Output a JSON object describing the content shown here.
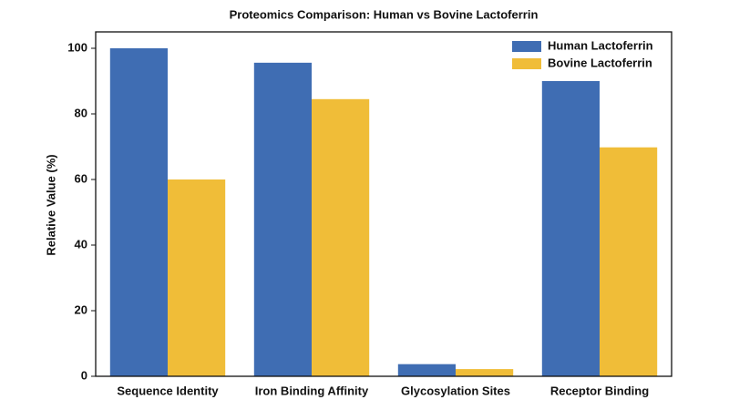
{
  "chart_data": {
    "type": "bar",
    "title": "Proteomics Comparison: Human vs Bovine Lactoferrin",
    "ylabel": "Relative Value (%)",
    "categories": [
      "Sequence Identity",
      "Iron Binding Affinity",
      "Glycosylation Sites",
      "Receptor Binding"
    ],
    "series": [
      {
        "name": "Human Lactoferrin",
        "color": "#3f6db3",
        "values": [
          100,
          95.6,
          3.7,
          90
        ]
      },
      {
        "name": "Bovine Lactoferrin",
        "color": "#f0bd38",
        "values": [
          60,
          84.5,
          2.2,
          69.8
        ]
      }
    ],
    "ylim": [
      0,
      105
    ],
    "yticks": [
      0,
      20,
      40,
      60,
      80,
      100
    ],
    "grid": false,
    "legend": "upper-right"
  }
}
